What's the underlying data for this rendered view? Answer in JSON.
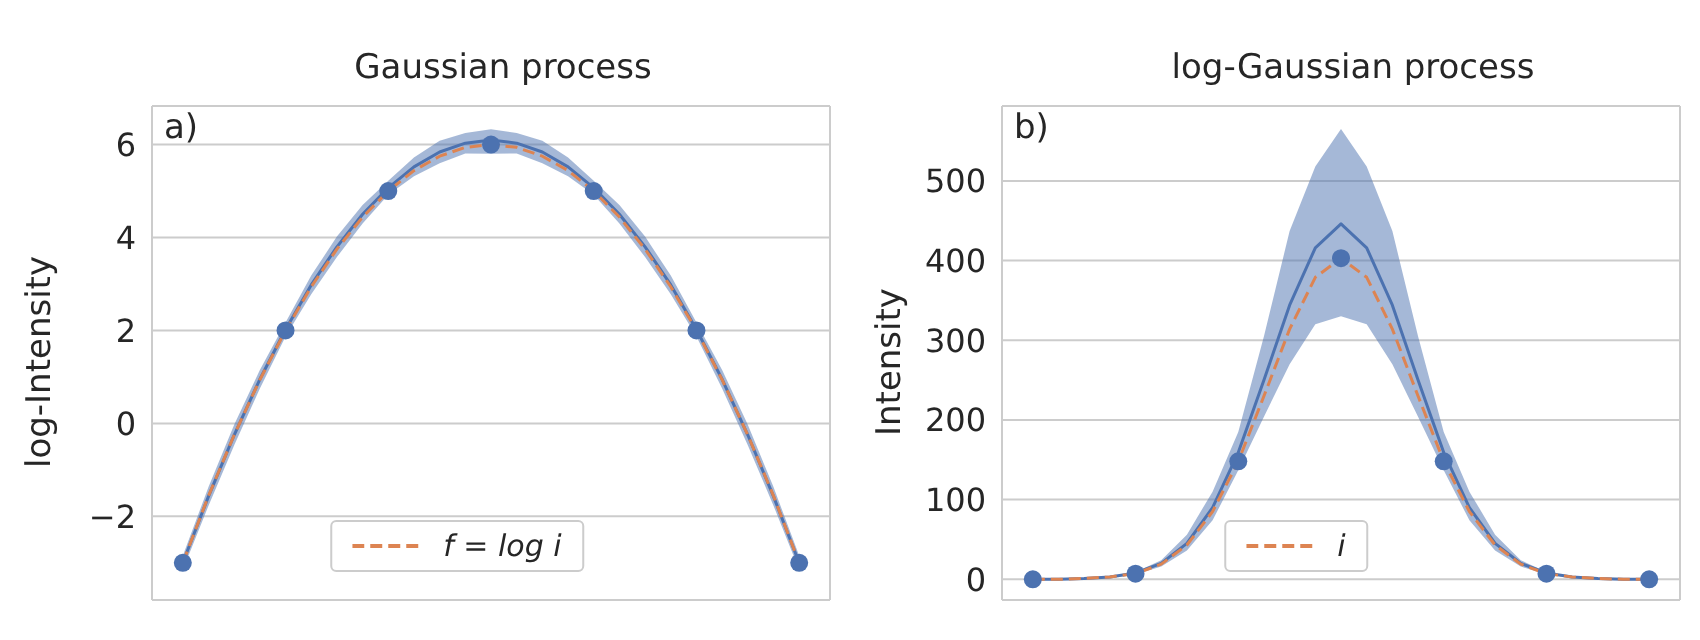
{
  "chart_data": [
    {
      "type": "line",
      "title": "Gaussian process",
      "ylabel": "log-Intensity",
      "annotations": [
        "a)"
      ],
      "categories": [
        null,
        null,
        null,
        null,
        null,
        null,
        null,
        null,
        null,
        null,
        null,
        null,
        null,
        null,
        null,
        null,
        null,
        null,
        null,
        null,
        null,
        null,
        null,
        null,
        null
      ],
      "ylim": [
        -3.8,
        6.83
      ],
      "yticks": [
        -2,
        0,
        2,
        4,
        6
      ],
      "tick_labels": "y",
      "grid": true,
      "legend": "bottom",
      "series": [
        {
          "type": "line",
          "color": "#4c72b0",
          "line_style": "solid",
          "marker": "none",
          "values": [
            -3,
            -1.57,
            -0.25,
            0.95,
            2.02,
            2.98,
            3.8,
            4.5,
            5.07,
            5.52,
            5.84,
            6.03,
            6.1,
            6.03,
            5.84,
            5.52,
            5.07,
            4.5,
            3.8,
            2.98,
            2.02,
            0.95,
            -0.25,
            -1.57,
            -3
          ],
          "upper": [
            -2.85,
            -1.37,
            -0.03,
            1.15,
            2.17,
            3.18,
            4.02,
            4.7,
            5.22,
            5.72,
            6.08,
            6.25,
            6.33,
            6.25,
            6.08,
            5.72,
            5.22,
            4.7,
            4.02,
            3.18,
            2.17,
            1.15,
            -0.03,
            -1.37,
            -2.85
          ],
          "lower": [
            -3.15,
            -1.77,
            -0.47,
            0.75,
            1.87,
            2.78,
            3.58,
            4.3,
            4.92,
            5.32,
            5.6,
            5.81,
            5.8,
            5.81,
            5.6,
            5.32,
            4.92,
            4.3,
            3.58,
            2.78,
            1.87,
            0.75,
            -0.47,
            -1.77,
            -3.15
          ]
        },
        {
          "type": "line",
          "name": "f = log i",
          "color": "#dd8452",
          "line_style": "dashed",
          "marker": "none",
          "values": [
            -3,
            -1.56,
            -0.25,
            0.94,
            2,
            2.94,
            3.75,
            4.44,
            5,
            5.44,
            5.75,
            5.94,
            6,
            5.94,
            5.75,
            5.44,
            5,
            4.44,
            3.75,
            2.94,
            2,
            0.94,
            -0.25,
            -1.56,
            -3
          ]
        },
        {
          "type": "scatter",
          "color": "#4c72b0",
          "marker": "circle",
          "values": [
            -3,
            null,
            null,
            null,
            2,
            null,
            null,
            null,
            5,
            null,
            null,
            null,
            6,
            null,
            null,
            null,
            5,
            null,
            null,
            null,
            2,
            null,
            null,
            null,
            -3
          ]
        }
      ]
    },
    {
      "type": "line",
      "title": "log-Gaussian process",
      "ylabel": "Intensity",
      "annotations": [
        "b)"
      ],
      "categories": [
        null,
        null,
        null,
        null,
        null,
        null,
        null,
        null,
        null,
        null,
        null,
        null,
        null,
        null,
        null,
        null,
        null,
        null,
        null,
        null,
        null,
        null,
        null,
        null,
        null
      ],
      "ylim": [
        -26,
        594
      ],
      "yticks": [
        0,
        100,
        200,
        300,
        400,
        500
      ],
      "tick_labels": "y",
      "grid": true,
      "legend": "bottom",
      "series": [
        {
          "type": "line",
          "color": "#4c72b0",
          "line_style": "solid",
          "marker": "none",
          "values": [
            0,
            0,
            1,
            3,
            8,
            20,
            45,
            90,
            159,
            250,
            344,
            416,
            446,
            416,
            344,
            250,
            159,
            90,
            45,
            20,
            8,
            3,
            1,
            0,
            0
          ],
          "upper": [
            0,
            0,
            1,
            3,
            9,
            24,
            56,
            110,
            185,
            305,
            437,
            518,
            565,
            518,
            437,
            305,
            185,
            110,
            56,
            24,
            9,
            3,
            1,
            0,
            0
          ],
          "lower": [
            0,
            0,
            1,
            2,
            6,
            16,
            36,
            74,
            137,
            204,
            270,
            320,
            330,
            320,
            270,
            204,
            137,
            74,
            36,
            16,
            6,
            2,
            1,
            0,
            0
          ]
        },
        {
          "type": "line",
          "name": "i",
          "color": "#dd8452",
          "line_style": "dashed",
          "marker": "none",
          "values": [
            0,
            0,
            1,
            3,
            7,
            19,
            43,
            85,
            148,
            230,
            314,
            379,
            403,
            379,
            314,
            230,
            148,
            85,
            43,
            19,
            7,
            3,
            1,
            0,
            0
          ]
        },
        {
          "type": "scatter",
          "color": "#4c72b0",
          "marker": "circle",
          "values": [
            0,
            null,
            null,
            null,
            7,
            null,
            null,
            null,
            148,
            null,
            null,
            null,
            403,
            null,
            null,
            null,
            148,
            null,
            null,
            null,
            7,
            null,
            null,
            null,
            0
          ]
        }
      ]
    }
  ]
}
